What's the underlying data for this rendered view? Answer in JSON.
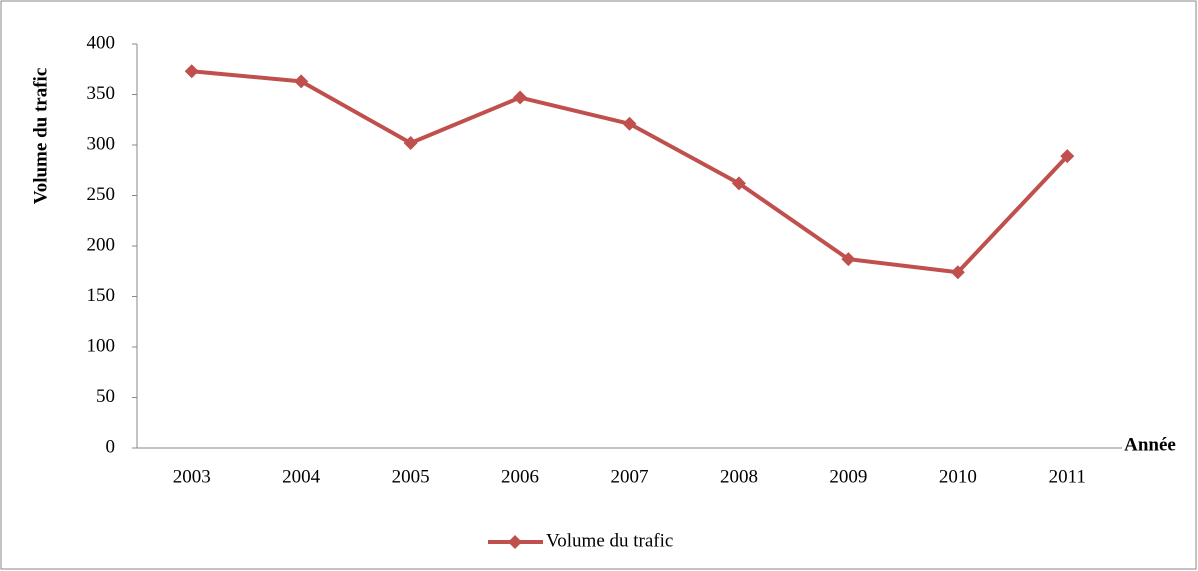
{
  "chart_data": {
    "type": "line",
    "y_label": "Volume du trafic",
    "x_label": "Année",
    "categories": [
      "2003",
      "2004",
      "2005",
      "2006",
      "2007",
      "2008",
      "2009",
      "2010",
      "2011"
    ],
    "series": [
      {
        "name": "Volume du trafic",
        "color": "#c0504d",
        "values": [
          373,
          363,
          302,
          347,
          321,
          262,
          187,
          174,
          289
        ]
      }
    ],
    "ylim": [
      0,
      400
    ],
    "yticks": [
      0,
      50,
      100,
      150,
      200,
      250,
      300,
      350,
      400
    ],
    "legend": "bottom"
  }
}
